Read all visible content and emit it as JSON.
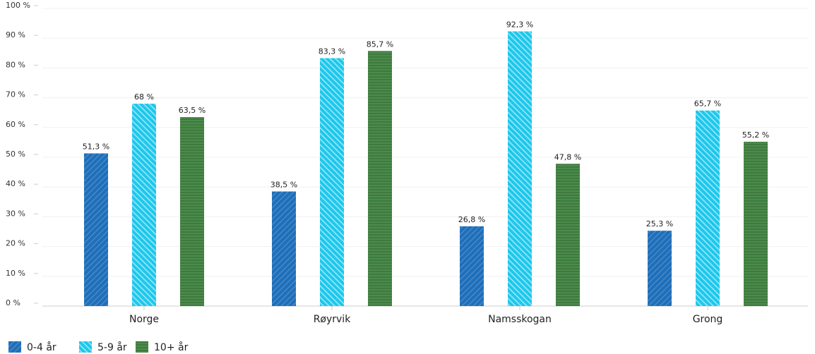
{
  "chart_data": {
    "type": "bar",
    "categories": [
      "Norge",
      "Røyrvik",
      "Namsskogan",
      "Grong"
    ],
    "series": [
      {
        "name": "0-4 år",
        "color": "#1f6fba",
        "pattern": "diagonal",
        "values": [
          51.3,
          38.5,
          26.8,
          25.3
        ],
        "value_labels": [
          "51,3 %",
          "38,5 %",
          "26,8 %",
          "25,3 %"
        ]
      },
      {
        "name": "5-9 år",
        "color": "#1ec8ec",
        "pattern": "stripes",
        "values": [
          68,
          83.3,
          92.3,
          65.7
        ],
        "value_labels": [
          "68 %",
          "83,3 %",
          "92,3 %",
          "65,7 %"
        ]
      },
      {
        "name": "10+ år",
        "color": "#4a8c4a",
        "pattern": "horizontal",
        "values": [
          63.5,
          85.7,
          47.8,
          55.2
        ],
        "value_labels": [
          "63,5 %",
          "85,7 %",
          "47,8 %",
          "55,2 %"
        ]
      }
    ],
    "ylim": [
      0,
      100
    ],
    "yticks": [
      {
        "value": 0,
        "label": "0 %"
      },
      {
        "value": 10,
        "label": "10 %"
      },
      {
        "value": 20,
        "label": "20 %"
      },
      {
        "value": 30,
        "label": "30 %"
      },
      {
        "value": 40,
        "label": "40 %"
      },
      {
        "value": 50,
        "label": "50 %"
      },
      {
        "value": 60,
        "label": "60 %"
      },
      {
        "value": 70,
        "label": "70 %"
      },
      {
        "value": 80,
        "label": "80 %"
      },
      {
        "value": 90,
        "label": "90 %"
      },
      {
        "value": 100,
        "label": "100 %"
      }
    ],
    "grid": true,
    "legend": "bottom-left"
  }
}
